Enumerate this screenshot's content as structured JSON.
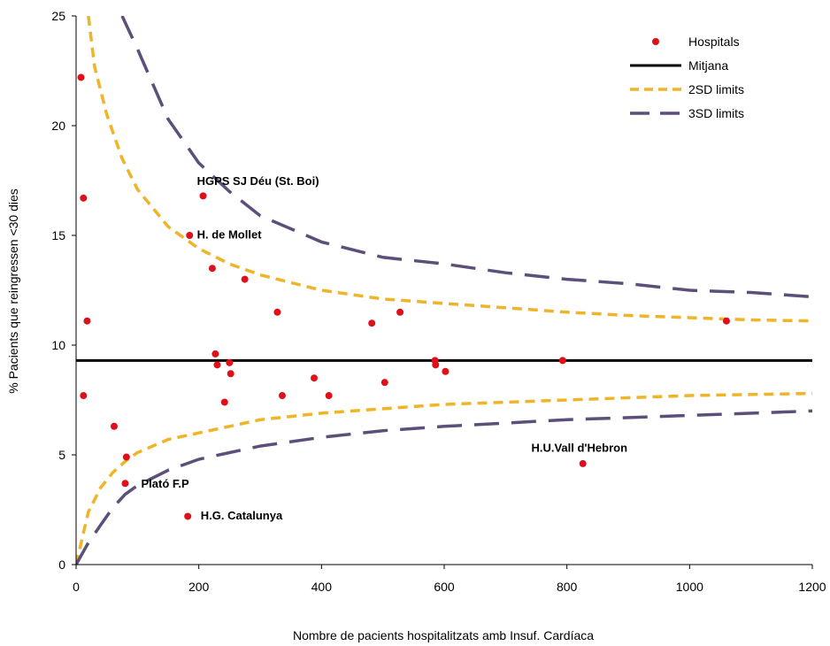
{
  "chart_data": {
    "type": "scatter",
    "title": "",
    "xlabel": "Nombre de pacients hospitalitzats amb Insuf. Cardíaca",
    "ylabel": "% Pacients que reingressen <30 dies",
    "xlim": [
      0,
      1200
    ],
    "ylim": [
      0,
      25
    ],
    "xticks": [
      0,
      200,
      400,
      600,
      800,
      1000,
      1200
    ],
    "yticks": [
      0,
      5,
      10,
      15,
      20,
      25
    ],
    "grid": false,
    "legend_position": "top-right",
    "legend": [
      {
        "label": "Hospitals",
        "kind": "dot",
        "color": "#e0101a"
      },
      {
        "label": "Mitjana",
        "kind": "solid",
        "color": "#000000"
      },
      {
        "label": "2SD limits",
        "kind": "short-dash",
        "color": "#f0b429"
      },
      {
        "label": "3SD limits",
        "kind": "long-dash",
        "color": "#5c4f7a"
      }
    ],
    "mean": 9.3,
    "series": [
      {
        "name": "Hospitals",
        "points": [
          {
            "x": 8,
            "y": 22.2
          },
          {
            "x": 12,
            "y": 16.7
          },
          {
            "x": 18,
            "y": 11.1
          },
          {
            "x": 12,
            "y": 7.7
          },
          {
            "x": 62,
            "y": 6.3
          },
          {
            "x": 82,
            "y": 4.9
          },
          {
            "x": 80,
            "y": 3.7
          },
          {
            "x": 182,
            "y": 2.2
          },
          {
            "x": 185,
            "y": 15.0
          },
          {
            "x": 207,
            "y": 16.8
          },
          {
            "x": 222,
            "y": 13.5
          },
          {
            "x": 227,
            "y": 9.6
          },
          {
            "x": 230,
            "y": 9.1
          },
          {
            "x": 250,
            "y": 9.2
          },
          {
            "x": 252,
            "y": 8.7
          },
          {
            "x": 242,
            "y": 7.4
          },
          {
            "x": 275,
            "y": 13.0
          },
          {
            "x": 328,
            "y": 11.5
          },
          {
            "x": 336,
            "y": 7.7
          },
          {
            "x": 388,
            "y": 8.5
          },
          {
            "x": 412,
            "y": 7.7
          },
          {
            "x": 482,
            "y": 11.0
          },
          {
            "x": 503,
            "y": 8.3
          },
          {
            "x": 528,
            "y": 11.5
          },
          {
            "x": 585,
            "y": 9.3
          },
          {
            "x": 586,
            "y": 9.1
          },
          {
            "x": 602,
            "y": 8.8
          },
          {
            "x": 793,
            "y": 9.3
          },
          {
            "x": 826,
            "y": 4.6
          },
          {
            "x": 1060,
            "y": 11.1
          }
        ]
      },
      {
        "name": "2SD limits",
        "upper": [
          [
            20,
            25
          ],
          [
            30,
            22.7
          ],
          [
            50,
            20.5
          ],
          [
            75,
            18.5
          ],
          [
            100,
            17.1
          ],
          [
            150,
            15.4
          ],
          [
            200,
            14.4
          ],
          [
            250,
            13.7
          ],
          [
            300,
            13.2
          ],
          [
            400,
            12.5
          ],
          [
            500,
            12.1
          ],
          [
            600,
            11.9
          ],
          [
            700,
            11.7
          ],
          [
            800,
            11.5
          ],
          [
            900,
            11.35
          ],
          [
            1000,
            11.25
          ],
          [
            1100,
            11.15
          ],
          [
            1200,
            11.1
          ]
        ],
        "lower": [
          [
            0,
            0
          ],
          [
            10,
            1.2
          ],
          [
            20,
            2.4
          ],
          [
            40,
            3.5
          ],
          [
            60,
            4.2
          ],
          [
            80,
            4.7
          ],
          [
            100,
            5.1
          ],
          [
            150,
            5.7
          ],
          [
            200,
            6.0
          ],
          [
            250,
            6.3
          ],
          [
            300,
            6.6
          ],
          [
            400,
            6.9
          ],
          [
            500,
            7.1
          ],
          [
            600,
            7.3
          ],
          [
            800,
            7.5
          ],
          [
            1000,
            7.7
          ],
          [
            1200,
            7.8
          ]
        ]
      },
      {
        "name": "3SD limits",
        "upper": [
          [
            75,
            25
          ],
          [
            100,
            23.5
          ],
          [
            150,
            20.3
          ],
          [
            200,
            18.3
          ],
          [
            250,
            17.0
          ],
          [
            300,
            15.9
          ],
          [
            400,
            14.7
          ],
          [
            500,
            14.0
          ],
          [
            600,
            13.7
          ],
          [
            700,
            13.3
          ],
          [
            800,
            13.0
          ],
          [
            900,
            12.8
          ],
          [
            1000,
            12.5
          ],
          [
            1100,
            12.4
          ],
          [
            1200,
            12.2
          ]
        ],
        "lower": [
          [
            0,
            0
          ],
          [
            20,
            1.0
          ],
          [
            40,
            1.8
          ],
          [
            60,
            2.6
          ],
          [
            80,
            3.2
          ],
          [
            100,
            3.6
          ],
          [
            150,
            4.3
          ],
          [
            200,
            4.8
          ],
          [
            250,
            5.1
          ],
          [
            300,
            5.4
          ],
          [
            400,
            5.8
          ],
          [
            500,
            6.1
          ],
          [
            600,
            6.3
          ],
          [
            800,
            6.6
          ],
          [
            1000,
            6.8
          ],
          [
            1200,
            7.0
          ]
        ]
      }
    ],
    "annotations": [
      {
        "text": "HGPS SJ Déu (St. Boi)",
        "x": 197,
        "y": 17.3
      },
      {
        "text": "H. de Mollet",
        "x": 197,
        "y": 14.85
      },
      {
        "text": "Plató F.P",
        "x": 106,
        "y": 3.5
      },
      {
        "text": "H.G. Catalunya",
        "x": 203,
        "y": 2.05
      },
      {
        "text": "H.U.Vall d'Hebron",
        "x": 742,
        "y": 5.15
      }
    ]
  }
}
